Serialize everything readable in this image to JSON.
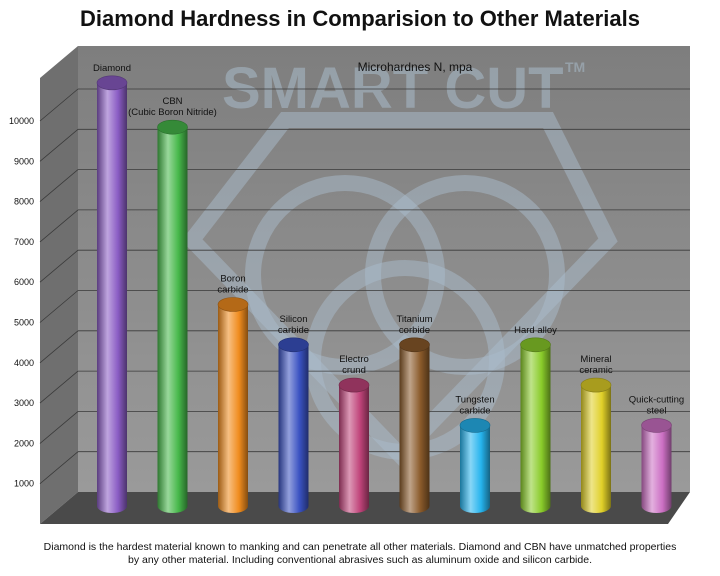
{
  "title": "Diamond Hardness in Comparision to Other Materials",
  "caption": "Diamond is the hardest material known to manking and can penetrate all other materials. Diamond and CBN have unmatched properties by any other material. Including conventional abrasives such as aluminum oxide and silicon carbide.",
  "watermark": "SMART CUT",
  "watermark_tm": "TM",
  "colors": {
    "wall": "#8e8e8e",
    "left_wall": "#6f6f6f",
    "floor": "#4a4a4a",
    "grid": "#3a3a3a"
  },
  "chart_data": {
    "type": "bar",
    "subtitle": "Microhardnes N, mpa",
    "categories": [
      {
        "label": [
          "Diamond"
        ],
        "value": 10500,
        "color": "#8a5cc4"
      },
      {
        "label": [
          "CBN",
          "(Cubic Boron Nitride)"
        ],
        "value": 9400,
        "color": "#46b84a"
      },
      {
        "label": [
          "Boron",
          "carbide"
        ],
        "value": 5000,
        "color": "#f08c1e"
      },
      {
        "label": [
          "Silicon",
          "carbide"
        ],
        "value": 4000,
        "color": "#3a52c2"
      },
      {
        "label": [
          "Electro",
          "crund"
        ],
        "value": 3000,
        "color": "#c0447a"
      },
      {
        "label": [
          "Titanium",
          "corbide"
        ],
        "value": 4000,
        "color": "#8a5a2a"
      },
      {
        "label": [
          "Tungsten",
          "carbide"
        ],
        "value": 2000,
        "color": "#26b4ee"
      },
      {
        "label": [
          "Hard alloy"
        ],
        "value": 4000,
        "color": "#8acc2a"
      },
      {
        "label": [
          "Mineral",
          "ceramic"
        ],
        "value": 3000,
        "color": "#e0d028"
      },
      {
        "label": [
          "Quick-cutting",
          "steel"
        ],
        "value": 2000,
        "color": "#cc70c4"
      }
    ],
    "yticks": [
      1000,
      2000,
      3000,
      4000,
      5000,
      6000,
      7000,
      8000,
      9000,
      10000
    ],
    "ylim": [
      0,
      11000
    ],
    "grid": true,
    "legend": "none"
  }
}
